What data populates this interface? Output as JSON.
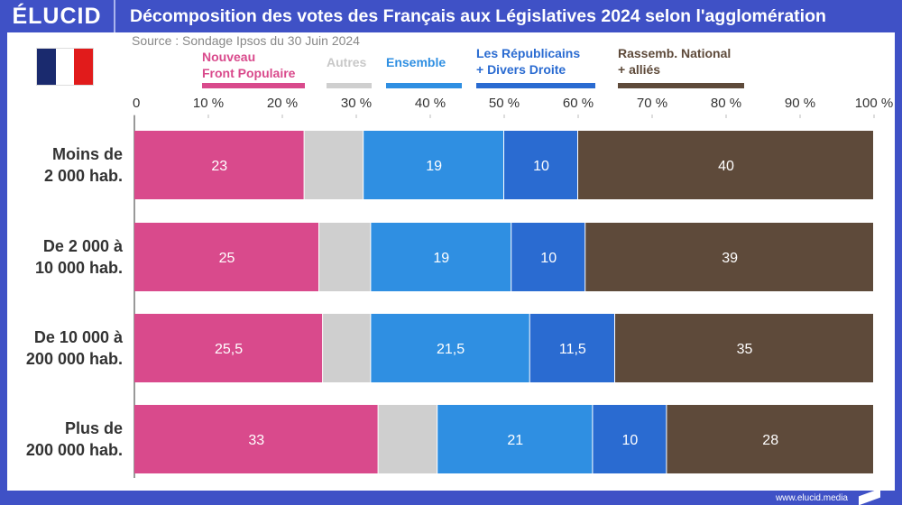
{
  "header": {
    "logo": "ÉLUCID",
    "title": "Décomposition des votes des Français aux Législatives 2024 selon l'agglomération"
  },
  "source": "Source : Sondage Ipsos du 30 Juin 2024",
  "footer": "www.elucid.media",
  "chart_data": {
    "type": "bar",
    "orientation": "horizontal-stacked",
    "title": "Décomposition des votes des Français aux Législatives 2024 selon l'agglomération",
    "categories": [
      "Moins de\n2 000 hab.",
      "De 2 000 à\n10 000 hab.",
      "De 10 000 à\n200 000 hab.",
      "Plus de\n200 000 hab."
    ],
    "xlim": [
      0,
      100
    ],
    "ticks": [
      "0",
      "10 %",
      "20 %",
      "30 %",
      "40 %",
      "50 %",
      "60 %",
      "70 %",
      "80 %",
      "90 %",
      "100 %"
    ],
    "legend_placement": "top",
    "series": [
      {
        "name": "Nouveau\nFront Populaire",
        "color": "#d94a8c",
        "values": [
          23,
          25,
          25.5,
          33
        ],
        "labels": [
          "23",
          "25",
          "25,5",
          "33"
        ]
      },
      {
        "name": "Autres",
        "color": "#cfcfcf",
        "values": [
          8,
          7,
          6.5,
          8
        ],
        "labels": [
          "",
          "",
          "",
          ""
        ]
      },
      {
        "name": "Ensemble",
        "color": "#2f8fe2",
        "values": [
          19,
          19,
          21.5,
          21
        ],
        "labels": [
          "19",
          "19",
          "21,5",
          "21"
        ]
      },
      {
        "name": "Les Républicains\n+ Divers Droite",
        "color": "#2a6bd1",
        "values": [
          10,
          10,
          11.5,
          10
        ],
        "labels": [
          "10",
          "10",
          "11,5",
          "10"
        ]
      },
      {
        "name": "Rassemb. National\n+ alliés",
        "color": "#5e4a3a",
        "values": [
          40,
          39,
          35,
          28
        ],
        "labels": [
          "40",
          "39",
          "35",
          "28"
        ]
      }
    ]
  }
}
